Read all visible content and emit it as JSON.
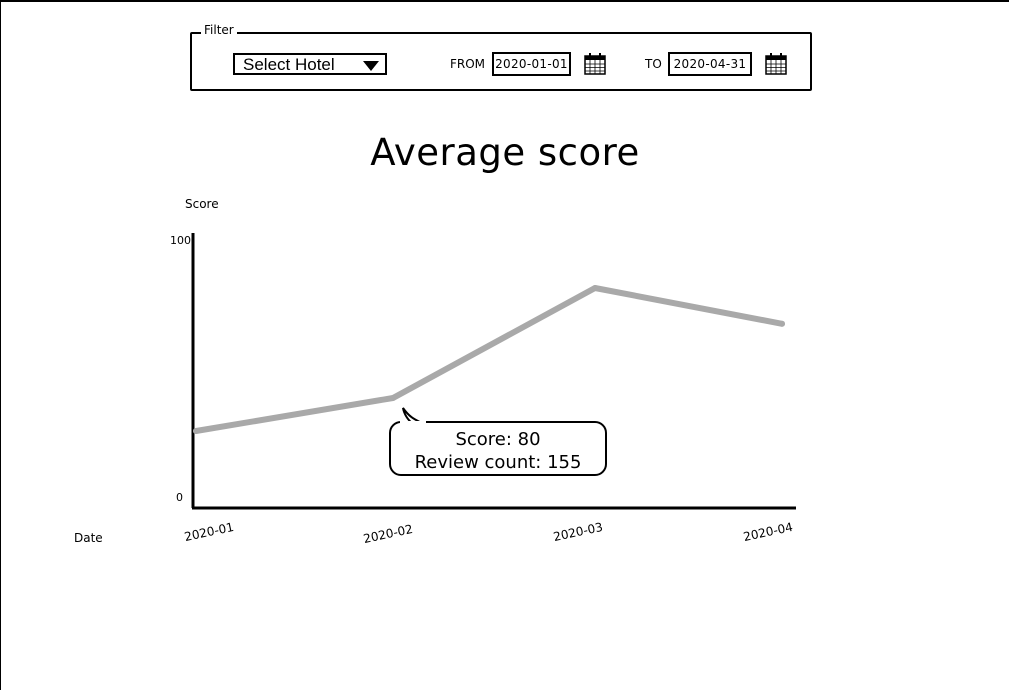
{
  "filter": {
    "legend": "Filter",
    "hotel_select": {
      "selected": "Select Hotel"
    },
    "from_label": "FROM",
    "from_value": "2020-01-01",
    "to_label": "TO",
    "to_value": "2020-04-31",
    "calendar_icon": "calendar-icon",
    "dropdown_icon": "chevron-down-icon"
  },
  "chart_data": {
    "type": "line",
    "title": "Average score",
    "ylabel": "Score",
    "xlabel": "Date",
    "categories": [
      "2020-01",
      "2020-02",
      "2020-03",
      "2020-04"
    ],
    "series": [
      {
        "values": [
          28,
          40,
          80,
          67
        ]
      }
    ],
    "ylim": [
      0,
      100
    ],
    "y_tick_labels": [
      "0",
      "100"
    ],
    "line_color": "#a9a9a9",
    "grid": false,
    "tooltip": {
      "score_line": "Score: 80",
      "count_line": "Review count: 155"
    }
  }
}
